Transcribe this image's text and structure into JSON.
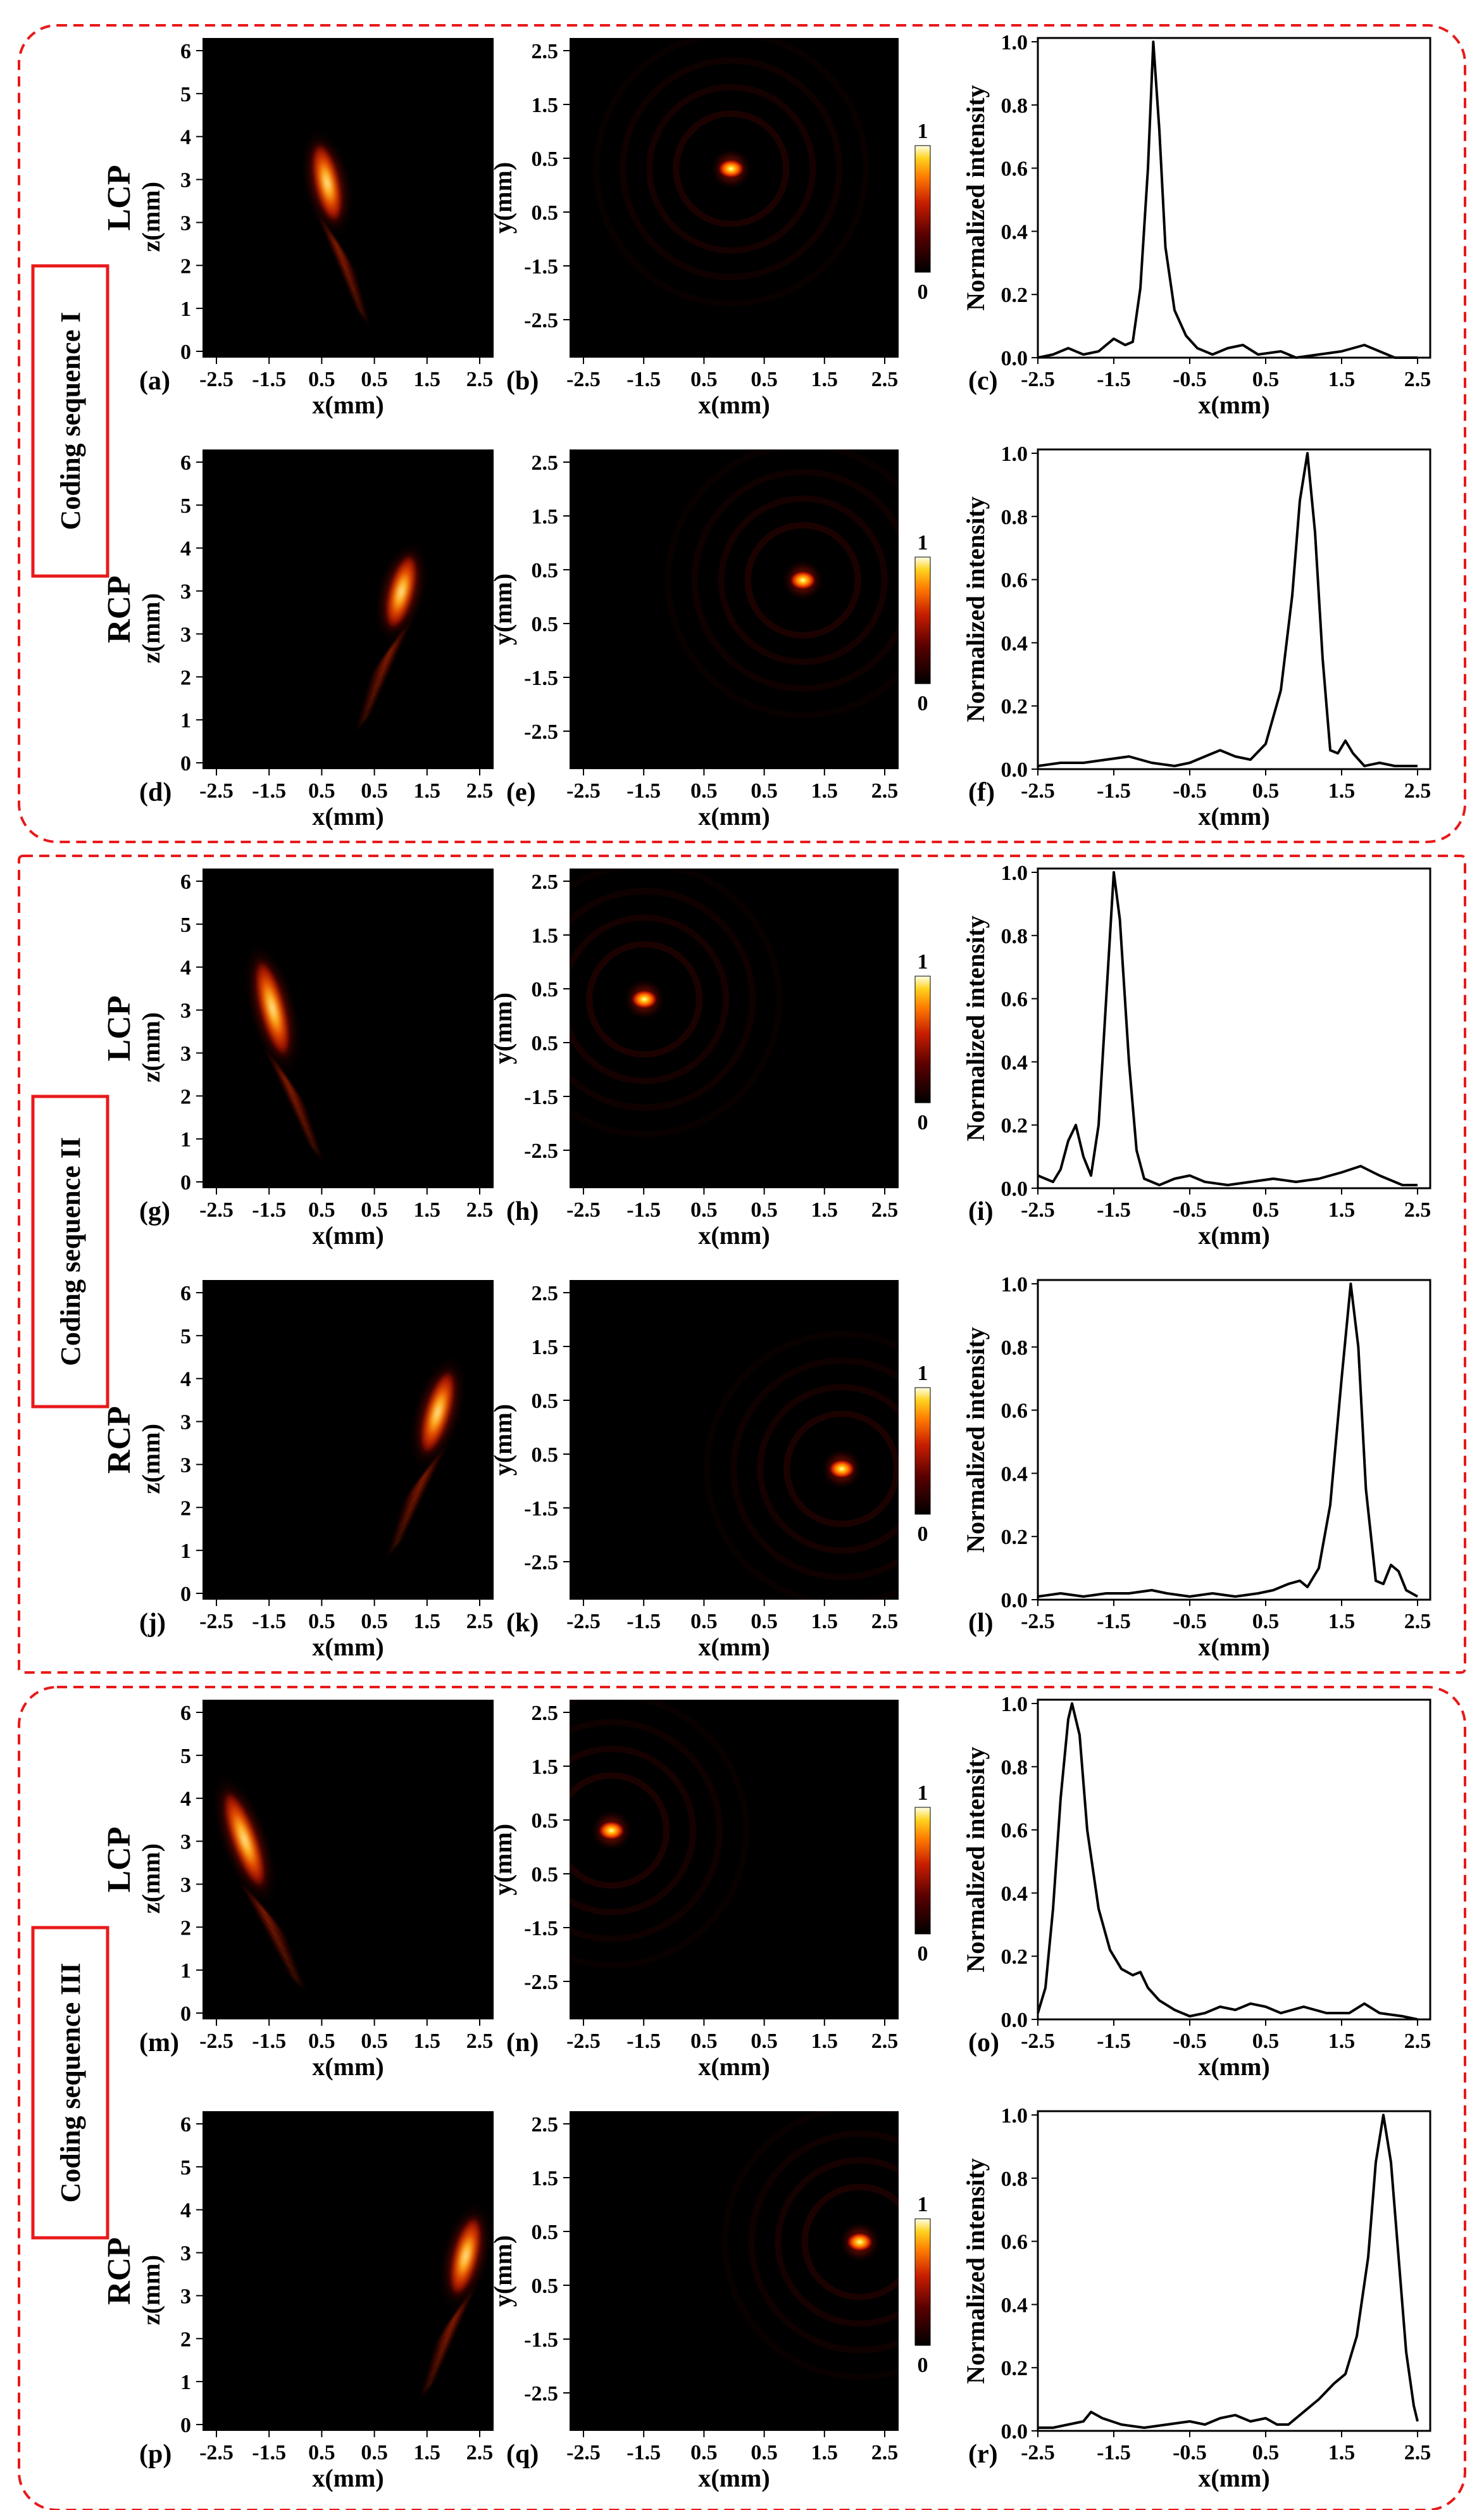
{
  "chart_data": {
    "type": "heatmap",
    "colormap": [
      "#000000",
      "#5a0000",
      "#c81e00",
      "#ff7a00",
      "#ffd21e",
      "#ffffe6"
    ],
    "group_border_color": "#e8191a",
    "colorbar_ticks": [
      "1",
      "0"
    ],
    "x_ticks": [
      "-2.5",
      "-1.5",
      "0.5",
      "0.5",
      "1.5",
      "2.5"
    ],
    "z_ticks": [
      "6",
      "5",
      "4",
      "3",
      "3",
      "2",
      "1",
      "0"
    ],
    "y_ticks": [
      "2.5",
      "1.5",
      "0.5",
      "0.5",
      "-1.5",
      "-2.5"
    ],
    "line_x_ticks": [
      "-2.5",
      "-1.5",
      "-0.5",
      "0.5",
      "1.5",
      "2.5"
    ],
    "line_y_ticks": [
      "1.0",
      "0.8",
      "0.6",
      "0.4",
      "0.2",
      "0.0"
    ],
    "axis_labels": {
      "x": "x(mm)",
      "z": "z(mm)",
      "y": "y(mm)",
      "intensity": "Normalized intensity"
    },
    "groups": [
      {
        "label": "Coding sequence I",
        "rows": [
          {
            "polarization": "LCP",
            "panels": [
              "(a)",
              "(b)",
              "(c)"
            ],
            "beam": {
              "x_near": -0.2,
              "z_near": 2.4,
              "x_far": -0.55,
              "z_far": 4.2
            },
            "focus": {
              "x": -0.05,
              "y": 0.5
            },
            "profile": [
              [
                -2.5,
                0.0
              ],
              [
                -2.3,
                0.01
              ],
              [
                -2.1,
                0.03
              ],
              [
                -1.9,
                0.01
              ],
              [
                -1.7,
                0.02
              ],
              [
                -1.5,
                0.06
              ],
              [
                -1.35,
                0.04
              ],
              [
                -1.25,
                0.05
              ],
              [
                -1.15,
                0.22
              ],
              [
                -1.05,
                0.6
              ],
              [
                -0.98,
                1.0
              ],
              [
                -0.9,
                0.72
              ],
              [
                -0.82,
                0.35
              ],
              [
                -0.7,
                0.15
              ],
              [
                -0.55,
                0.07
              ],
              [
                -0.4,
                0.03
              ],
              [
                -0.2,
                0.01
              ],
              [
                0.0,
                0.03
              ],
              [
                0.2,
                0.04
              ],
              [
                0.4,
                0.01
              ],
              [
                0.7,
                0.02
              ],
              [
                0.9,
                0.0
              ],
              [
                1.2,
                0.01
              ],
              [
                1.5,
                0.02
              ],
              [
                1.8,
                0.04
              ],
              [
                2.0,
                0.02
              ],
              [
                2.2,
                0.0
              ],
              [
                2.5,
                0.0
              ]
            ]
          },
          {
            "polarization": "RCP",
            "panels": [
              "(d)",
              "(e)",
              "(f)"
            ],
            "beam": {
              "x_near": 0.75,
              "z_near": 2.5,
              "x_far": 1.15,
              "z_far": 4.2
            },
            "focus": {
              "x": 1.15,
              "y": 0.5
            },
            "profile": [
              [
                -2.5,
                0.01
              ],
              [
                -2.2,
                0.02
              ],
              [
                -1.9,
                0.02
              ],
              [
                -1.6,
                0.03
              ],
              [
                -1.3,
                0.04
              ],
              [
                -1.0,
                0.02
              ],
              [
                -0.7,
                0.01
              ],
              [
                -0.5,
                0.02
              ],
              [
                -0.3,
                0.04
              ],
              [
                -0.1,
                0.06
              ],
              [
                0.1,
                0.04
              ],
              [
                0.3,
                0.03
              ],
              [
                0.5,
                0.08
              ],
              [
                0.7,
                0.25
              ],
              [
                0.85,
                0.55
              ],
              [
                0.95,
                0.85
              ],
              [
                1.05,
                1.0
              ],
              [
                1.15,
                0.75
              ],
              [
                1.25,
                0.35
              ],
              [
                1.35,
                0.06
              ],
              [
                1.45,
                0.05
              ],
              [
                1.55,
                0.09
              ],
              [
                1.65,
                0.05
              ],
              [
                1.8,
                0.01
              ],
              [
                2.0,
                0.02
              ],
              [
                2.2,
                0.01
              ],
              [
                2.5,
                0.01
              ]
            ]
          }
        ]
      },
      {
        "label": "Coding sequence II",
        "rows": [
          {
            "polarization": "LCP",
            "panels": [
              "(g)",
              "(h)",
              "(i)"
            ],
            "beam": {
              "x_near": -1.1,
              "z_near": 2.3,
              "x_far": -1.6,
              "z_far": 4.5
            },
            "focus": {
              "x": -1.5,
              "y": 0.5
            },
            "profile": [
              [
                -2.5,
                0.04
              ],
              [
                -2.4,
                0.03
              ],
              [
                -2.3,
                0.02
              ],
              [
                -2.2,
                0.06
              ],
              [
                -2.1,
                0.15
              ],
              [
                -2.0,
                0.2
              ],
              [
                -1.9,
                0.1
              ],
              [
                -1.8,
                0.04
              ],
              [
                -1.7,
                0.2
              ],
              [
                -1.6,
                0.6
              ],
              [
                -1.5,
                1.0
              ],
              [
                -1.42,
                0.85
              ],
              [
                -1.3,
                0.4
              ],
              [
                -1.2,
                0.12
              ],
              [
                -1.1,
                0.03
              ],
              [
                -0.9,
                0.01
              ],
              [
                -0.7,
                0.03
              ],
              [
                -0.5,
                0.04
              ],
              [
                -0.3,
                0.02
              ],
              [
                0.0,
                0.01
              ],
              [
                0.3,
                0.02
              ],
              [
                0.6,
                0.03
              ],
              [
                0.9,
                0.02
              ],
              [
                1.2,
                0.03
              ],
              [
                1.5,
                0.05
              ],
              [
                1.75,
                0.07
              ],
              [
                2.0,
                0.04
              ],
              [
                2.3,
                0.01
              ],
              [
                2.5,
                0.01
              ]
            ]
          },
          {
            "polarization": "RCP",
            "panels": [
              "(j)",
              "(k)",
              "(l)"
            ],
            "beam": {
              "x_near": 1.35,
              "z_near": 2.6,
              "x_far": 1.85,
              "z_far": 4.5
            },
            "focus": {
              "x": 1.8,
              "y": -0.5
            },
            "profile": [
              [
                -2.5,
                0.01
              ],
              [
                -2.2,
                0.02
              ],
              [
                -1.9,
                0.01
              ],
              [
                -1.6,
                0.02
              ],
              [
                -1.3,
                0.02
              ],
              [
                -1.0,
                0.03
              ],
              [
                -0.8,
                0.02
              ],
              [
                -0.5,
                0.01
              ],
              [
                -0.2,
                0.02
              ],
              [
                0.1,
                0.01
              ],
              [
                0.4,
                0.02
              ],
              [
                0.6,
                0.03
              ],
              [
                0.8,
                0.05
              ],
              [
                0.95,
                0.06
              ],
              [
                1.05,
                0.04
              ],
              [
                1.2,
                0.1
              ],
              [
                1.35,
                0.3
              ],
              [
                1.5,
                0.7
              ],
              [
                1.62,
                1.0
              ],
              [
                1.72,
                0.8
              ],
              [
                1.82,
                0.35
              ],
              [
                1.95,
                0.06
              ],
              [
                2.05,
                0.05
              ],
              [
                2.15,
                0.11
              ],
              [
                2.25,
                0.09
              ],
              [
                2.35,
                0.03
              ],
              [
                2.5,
                0.01
              ]
            ]
          }
        ]
      },
      {
        "label": "Coding sequence III",
        "rows": [
          {
            "polarization": "LCP",
            "panels": [
              "(m)",
              "(n)",
              "(o)"
            ],
            "beam": {
              "x_near": -1.5,
              "z_near": 2.3,
              "x_far": -2.2,
              "z_far": 4.5
            },
            "focus": {
              "x": -2.05,
              "y": 0.5
            },
            "profile": [
              [
                -2.5,
                0.02
              ],
              [
                -2.4,
                0.1
              ],
              [
                -2.3,
                0.35
              ],
              [
                -2.2,
                0.7
              ],
              [
                -2.1,
                0.95
              ],
              [
                -2.05,
                1.0
              ],
              [
                -1.95,
                0.9
              ],
              [
                -1.85,
                0.6
              ],
              [
                -1.7,
                0.35
              ],
              [
                -1.55,
                0.22
              ],
              [
                -1.4,
                0.16
              ],
              [
                -1.25,
                0.14
              ],
              [
                -1.15,
                0.15
              ],
              [
                -1.05,
                0.1
              ],
              [
                -0.9,
                0.06
              ],
              [
                -0.7,
                0.03
              ],
              [
                -0.5,
                0.01
              ],
              [
                -0.3,
                0.02
              ],
              [
                -0.1,
                0.04
              ],
              [
                0.1,
                0.03
              ],
              [
                0.3,
                0.05
              ],
              [
                0.5,
                0.04
              ],
              [
                0.7,
                0.02
              ],
              [
                1.0,
                0.04
              ],
              [
                1.3,
                0.02
              ],
              [
                1.6,
                0.02
              ],
              [
                1.8,
                0.05
              ],
              [
                2.0,
                0.02
              ],
              [
                2.3,
                0.01
              ],
              [
                2.5,
                0.0
              ]
            ]
          },
          {
            "polarization": "RCP",
            "panels": [
              "(p)",
              "(q)",
              "(r)"
            ],
            "beam": {
              "x_near": 1.9,
              "z_near": 2.4,
              "x_far": 2.3,
              "z_far": 4.2
            },
            "focus": {
              "x": 2.1,
              "y": 0.5
            },
            "profile": [
              [
                -2.5,
                0.01
              ],
              [
                -2.3,
                0.01
              ],
              [
                -2.1,
                0.02
              ],
              [
                -1.9,
                0.03
              ],
              [
                -1.8,
                0.06
              ],
              [
                -1.65,
                0.04
              ],
              [
                -1.4,
                0.02
              ],
              [
                -1.1,
                0.01
              ],
              [
                -0.8,
                0.02
              ],
              [
                -0.5,
                0.03
              ],
              [
                -0.3,
                0.02
              ],
              [
                -0.1,
                0.04
              ],
              [
                0.1,
                0.05
              ],
              [
                0.3,
                0.03
              ],
              [
                0.5,
                0.04
              ],
              [
                0.65,
                0.02
              ],
              [
                0.8,
                0.02
              ],
              [
                1.0,
                0.06
              ],
              [
                1.2,
                0.1
              ],
              [
                1.4,
                0.15
              ],
              [
                1.55,
                0.18
              ],
              [
                1.7,
                0.3
              ],
              [
                1.85,
                0.55
              ],
              [
                1.95,
                0.85
              ],
              [
                2.05,
                1.0
              ],
              [
                2.15,
                0.85
              ],
              [
                2.25,
                0.55
              ],
              [
                2.35,
                0.25
              ],
              [
                2.45,
                0.08
              ],
              [
                2.5,
                0.03
              ]
            ]
          }
        ]
      }
    ]
  }
}
